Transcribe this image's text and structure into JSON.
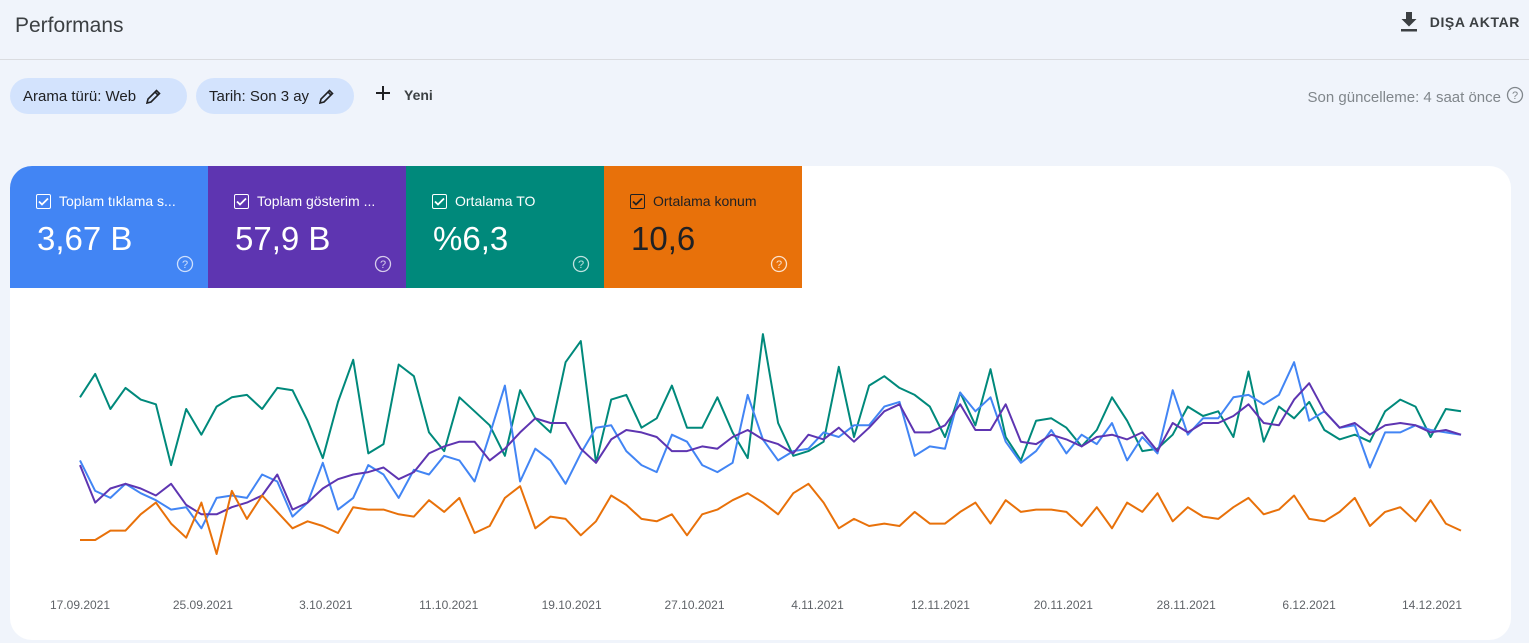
{
  "header": {
    "title": "Performans",
    "export_label": "DIŞA AKTAR",
    "export_icon": "download-icon"
  },
  "filters": {
    "search_type": "Arama türü: Web",
    "date": "Tarih: Son 3 ay",
    "new_label": "Yeni",
    "last_update": "Son güncelleme: 4 saat önce"
  },
  "metrics": [
    {
      "label": "Toplam tıklama s...",
      "value": "3,67 B",
      "color": "#4285f4",
      "checked": true
    },
    {
      "label": "Toplam gösterim ...",
      "value": "57,9 B",
      "color": "#5e35b1",
      "checked": true
    },
    {
      "label": "Ortalama TO",
      "value": "%6,3",
      "color": "#00897b",
      "checked": true
    },
    {
      "label": "Ortalama konum",
      "value": "10,6",
      "color": "#e8710a",
      "checked": true
    }
  ],
  "chart_data": {
    "type": "line",
    "x_tick_labels": [
      "17.09.2021",
      "25.09.2021",
      "3.10.2021",
      "11.10.2021",
      "19.10.2021",
      "27.10.2021",
      "4.11.2021",
      "12.11.2021",
      "20.11.2021",
      "28.11.2021",
      "6.12.2021",
      "14.12.2021"
    ],
    "x_start": "17.09.2021",
    "x_end": "16.12.2021",
    "y_axis_visible": false,
    "grid": false,
    "note_scale": "Series are plotted on independent normalized scales (0-100) as in the original, which shows no y axis.",
    "series": [
      {
        "name": "Ortalama TO",
        "color": "#00897b",
        "values": [
          61,
          71,
          56,
          65,
          60,
          58,
          32,
          56,
          45,
          57,
          61,
          62,
          56,
          65,
          64,
          51,
          35,
          59,
          77,
          37,
          41,
          75,
          70,
          46,
          38,
          61,
          55,
          49,
          36,
          64,
          52,
          46,
          76,
          85,
          33,
          60,
          62,
          48,
          52,
          66,
          48,
          48,
          61,
          46,
          35,
          88,
          50,
          36,
          38,
          42,
          74,
          44,
          66,
          70,
          65,
          62,
          57,
          44,
          63,
          49,
          73,
          44,
          34,
          51,
          52,
          48,
          40,
          47,
          61,
          51,
          38,
          39,
          45,
          57,
          53,
          55,
          44,
          72,
          42,
          57,
          52,
          59,
          47,
          43,
          45,
          42,
          55,
          60,
          57,
          44,
          56,
          55
        ]
      },
      {
        "name": "Toplam tıklama sayısı",
        "color": "#4285f4",
        "values": [
          34,
          21,
          18,
          24,
          20,
          17,
          13,
          14,
          5,
          18,
          19,
          18,
          28,
          25,
          10,
          16,
          33,
          13,
          18,
          32,
          28,
          18,
          30,
          28,
          36,
          34,
          25,
          45,
          66,
          25,
          39,
          34,
          24,
          37,
          48,
          49,
          38,
          32,
          29,
          45,
          42,
          32,
          29,
          33,
          62,
          43,
          34,
          38,
          39,
          46,
          44,
          49,
          49,
          57,
          59,
          36,
          40,
          39,
          63,
          55,
          61,
          42,
          33,
          38,
          47,
          37,
          45,
          41,
          50,
          34,
          44,
          37,
          64,
          45,
          52,
          52,
          61,
          62,
          58,
          62,
          76,
          51,
          55,
          48,
          49,
          31,
          46,
          46,
          49,
          47,
          46,
          45
        ]
      },
      {
        "name": "Toplam gösterim sayısı",
        "color": "#5e35b1",
        "values": [
          32,
          16,
          22,
          24,
          22,
          19,
          24,
          15,
          11,
          11,
          14,
          16,
          19,
          28,
          13,
          16,
          22,
          26,
          28,
          29,
          31,
          26,
          29,
          37,
          40,
          42,
          42,
          34,
          39,
          46,
          52,
          50,
          50,
          39,
          33,
          43,
          47,
          46,
          44,
          38,
          38,
          40,
          39,
          44,
          47,
          43,
          41,
          37,
          45,
          43,
          48,
          42,
          48,
          55,
          58,
          46,
          46,
          49,
          58,
          47,
          47,
          58,
          42,
          41,
          45,
          43,
          40,
          44,
          45,
          43,
          46,
          38,
          50,
          46,
          50,
          50,
          53,
          58,
          50,
          49,
          60,
          67,
          55,
          48,
          50,
          45,
          49,
          50,
          49,
          46,
          47,
          45
        ]
      },
      {
        "name": "Ortalama konum",
        "color": "#e8710a",
        "values": [
          0,
          0,
          4,
          4,
          11,
          16,
          7,
          1,
          16,
          -6,
          21,
          9,
          19,
          12,
          5,
          8,
          6,
          3,
          14,
          13,
          13,
          11,
          10,
          17,
          12,
          18,
          3,
          6,
          18,
          23,
          5,
          10,
          9,
          2,
          8,
          19,
          15,
          9,
          8,
          11,
          2,
          11,
          13,
          17,
          20,
          16,
          11,
          20,
          24,
          16,
          5,
          9,
          6,
          7,
          6,
          12,
          7,
          7,
          12,
          16,
          7,
          17,
          12,
          13,
          13,
          12,
          6,
          14,
          5,
          16,
          12,
          20,
          8,
          14,
          10,
          9,
          14,
          18,
          11,
          13,
          19,
          9,
          8,
          12,
          18,
          6,
          12,
          14,
          8,
          17,
          7,
          4
        ]
      }
    ]
  }
}
